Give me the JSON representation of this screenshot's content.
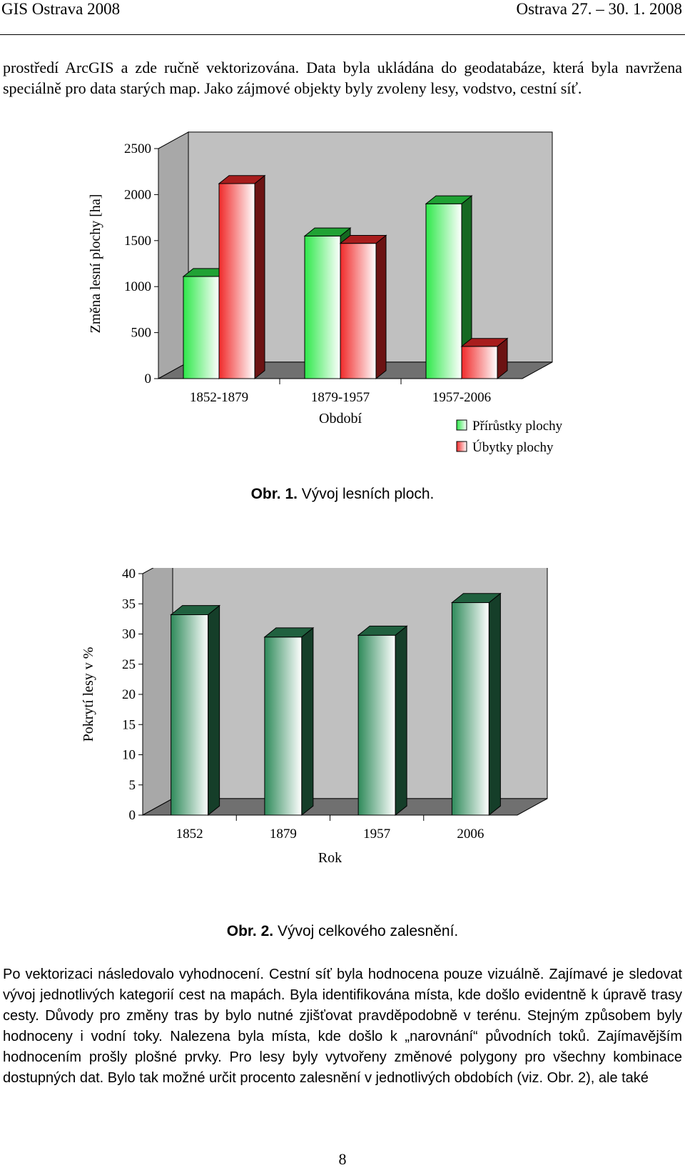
{
  "header": {
    "left": "GIS Ostrava 2008",
    "right": "Ostrava 27. – 30. 1. 2008"
  },
  "intro_paragraph": "prostředí ArcGIS a zde ručně vektorizována. Data byla ukládána do geodatabáze, která byla navržena speciálně pro data starých map. Jako zájmové objekty byly zvoleny lesy, vodstvo, cestní síť.",
  "figure1": {
    "caption_num": "Obr. 1.",
    "caption_text": "Vývoj lesních ploch."
  },
  "figure2": {
    "caption_num": "Obr. 2.",
    "caption_text": "Vývoj celkového zalesnění."
  },
  "chart_data": [
    {
      "type": "bar",
      "title": "",
      "xlabel": "Období",
      "ylabel": "Změna lesní plochy  [ha]",
      "ylim": [
        0,
        2500
      ],
      "yticks": [
        0,
        500,
        1000,
        1500,
        2000,
        2500
      ],
      "categories": [
        "1852-1879",
        "1879-1957",
        "1957-2006"
      ],
      "series": [
        {
          "name": "Přírůstky plochy",
          "values": [
            1110,
            1550,
            1900
          ],
          "color": "#2ee84a"
        },
        {
          "name": "Úbytky plochy",
          "values": [
            2120,
            1470,
            350
          ],
          "color": "#f02a2a"
        }
      ],
      "legend": "bottom-right",
      "grid": false,
      "style": "3d"
    },
    {
      "type": "bar",
      "title": "",
      "xlabel": "Rok",
      "ylabel": "Pokrytí lesy v %",
      "ylim": [
        0,
        40
      ],
      "yticks": [
        0,
        5,
        10,
        15,
        20,
        25,
        30,
        35,
        40
      ],
      "categories": [
        "1852",
        "1879",
        "1957",
        "2006"
      ],
      "series": [
        {
          "values": [
            33.2,
            29.5,
            29.8,
            35.2
          ],
          "color": "#2e8a5a"
        }
      ],
      "grid": false,
      "style": "3d"
    }
  ],
  "body_paragraph": "Po vektorizaci následovalo vyhodnocení. Cestní síť byla hodnocena pouze vizuálně. Zajímavé je sledovat vývoj jednotlivých kategorií cest na mapách. Byla identifikována místa, kde došlo evidentně k úpravě trasy cesty. Důvody pro změny tras by bylo nutné zjišťovat pravděpodobně v terénu. Stejným způsobem byly hodnoceny i vodní toky. Nalezena byla místa, kde došlo k „narovnání“ původních toků. Zajímavějším hodnocením prošly plošné prvky. Pro lesy byly vytvořeny změnové polygony pro všechny kombinace dostupných dat. Bylo tak možné určit procento zalesnění v jednotlivých obdobích (viz. Obr. 2), ale také",
  "page_number": "8"
}
